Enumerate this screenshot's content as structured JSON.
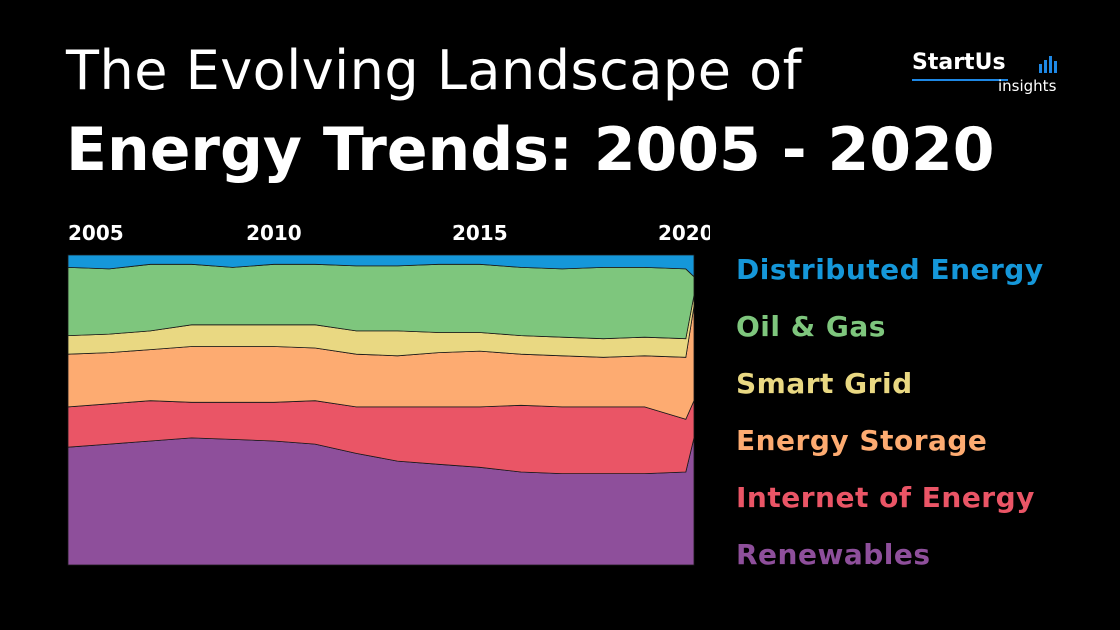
{
  "header": {
    "title_line1": "The Evolving Landscape of",
    "title_line2": "Energy Trends: 2005 - 2020"
  },
  "logo": {
    "word": "StartUs",
    "sub": "insights",
    "icon": "bar-chart-icon"
  },
  "chart_data": {
    "type": "area",
    "stacked": true,
    "normalized": true,
    "x": [
      2005,
      2006,
      2007,
      2008,
      2009,
      2010,
      2011,
      2012,
      2013,
      2014,
      2015,
      2016,
      2017,
      2018,
      2019,
      2020,
      2020.2
    ],
    "x_ticks": [
      "2005",
      "2010",
      "2015",
      "2020"
    ],
    "x_tick_positions": [
      2005,
      2010,
      2015,
      2020
    ],
    "ylim": [
      0,
      100
    ],
    "grid": false,
    "legend_placement": "right",
    "series": [
      {
        "name": "Renewables",
        "color": "#8e4f9b",
        "values": [
          38,
          39,
          40,
          41,
          40.5,
          40,
          39,
          36,
          33.5,
          32.5,
          31.5,
          30,
          29.5,
          29.5,
          29.5,
          30,
          41
        ]
      },
      {
        "name": "Internet of Energy",
        "color": "#ea5566",
        "values": [
          13,
          13,
          13,
          11.5,
          12,
          12.5,
          14,
          15,
          17.5,
          18.5,
          19.5,
          21.5,
          21.5,
          21.5,
          21.5,
          17,
          12
        ]
      },
      {
        "name": "Energy Storage",
        "color": "#fdab71",
        "values": [
          17,
          16.5,
          16.5,
          18,
          18,
          18,
          17,
          17,
          16.5,
          17.5,
          18,
          16.5,
          16.5,
          16,
          16.5,
          20,
          30.5
        ]
      },
      {
        "name": "Smart Grid",
        "color": "#e9d882",
        "values": [
          6,
          6,
          6,
          7,
          7,
          7,
          7.5,
          7.5,
          8,
          6.5,
          6,
          6,
          6,
          6,
          6,
          6,
          3.5
        ]
      },
      {
        "name": "Oil & Gas",
        "color": "#7ec67d",
        "values": [
          22,
          21,
          21.5,
          19.5,
          18.5,
          19.5,
          19.5,
          21,
          21,
          22,
          22,
          22,
          22,
          23,
          22.5,
          22.5,
          6
        ]
      },
      {
        "name": "Distributed Energy",
        "color": "#1597d9",
        "values": [
          4,
          4.5,
          3,
          3,
          4,
          3,
          3,
          3.5,
          3.5,
          3,
          3,
          4,
          4.5,
          4,
          4,
          4.5,
          7
        ]
      }
    ]
  }
}
